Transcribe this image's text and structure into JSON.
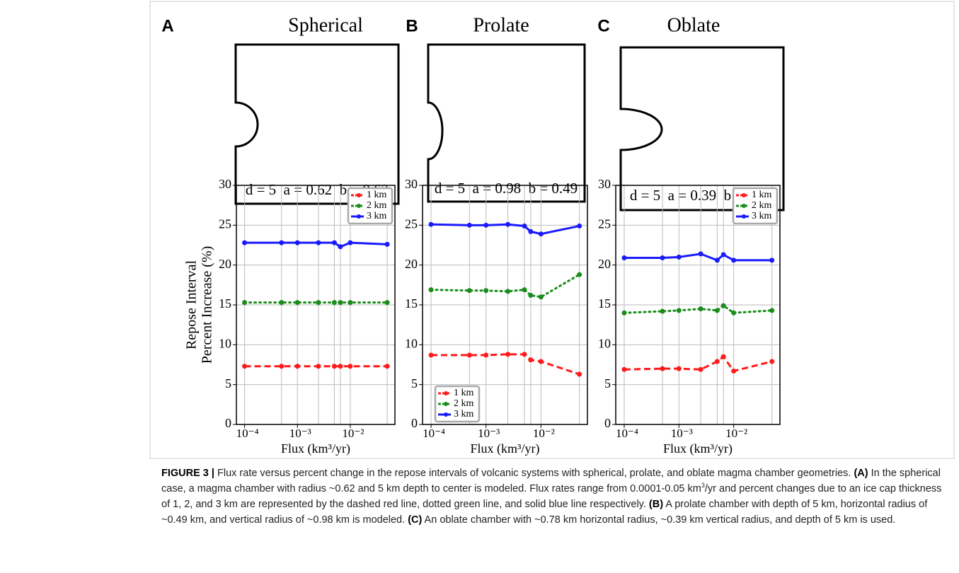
{
  "panels": [
    {
      "letter": "A",
      "title": "Spherical",
      "params": "d = 5  a = 0.62  b = 0.62"
    },
    {
      "letter": "B",
      "title": "Prolate",
      "params": "d = 5  a = 0.98  b = 0.49"
    },
    {
      "letter": "C",
      "title": "Oblate",
      "params": "d = 5  a = 0.39  b = 0.78"
    }
  ],
  "chart_data": [
    {
      "type": "line",
      "ylabel": [
        "Repose Interval",
        "Percent Increase (%)"
      ],
      "xlabel": "Flux (km³/yr)",
      "log_x": true,
      "xlim": [
        7e-05,
        0.07
      ],
      "xticks": [
        {
          "value": 0.0001,
          "label": "10⁻⁴"
        },
        {
          "value": 0.001,
          "label": "10⁻³"
        },
        {
          "value": 0.01,
          "label": "10⁻²"
        }
      ],
      "ylim": [
        0,
        30
      ],
      "yticks": [
        0,
        5,
        10,
        15,
        20,
        25,
        30
      ],
      "grid": true,
      "legend": "upper right",
      "x": [
        0.0001,
        0.0005,
        0.001,
        0.0025,
        0.005,
        0.0065,
        0.01,
        0.05
      ],
      "series": [
        {
          "name": "1 km",
          "color": "#ff1a1a",
          "dash": "dashed",
          "values": [
            7.3,
            7.3,
            7.3,
            7.3,
            7.3,
            7.3,
            7.3,
            7.3
          ]
        },
        {
          "name": "2 km",
          "color": "#1a8c1a",
          "dash": "dotted",
          "values": [
            15.3,
            15.3,
            15.3,
            15.3,
            15.3,
            15.3,
            15.3,
            15.3
          ]
        },
        {
          "name": "3 km",
          "color": "#1a1aff",
          "dash": "solid",
          "values": [
            22.8,
            22.8,
            22.8,
            22.8,
            22.8,
            22.3,
            22.8,
            22.6
          ]
        }
      ]
    },
    {
      "type": "line",
      "xlabel": "Flux (km³/yr)",
      "log_x": true,
      "xlim": [
        7e-05,
        0.07
      ],
      "xticks": [
        {
          "value": 0.0001,
          "label": "10⁻⁴"
        },
        {
          "value": 0.001,
          "label": "10⁻³"
        },
        {
          "value": 0.01,
          "label": "10⁻²"
        }
      ],
      "ylim": [
        0,
        30
      ],
      "yticks": [
        0,
        5,
        10,
        15,
        20,
        25,
        30
      ],
      "grid": true,
      "legend": "lower left",
      "x": [
        0.0001,
        0.0005,
        0.001,
        0.0025,
        0.005,
        0.0065,
        0.01,
        0.05
      ],
      "series": [
        {
          "name": "1 km",
          "color": "#ff1a1a",
          "dash": "dashed",
          "values": [
            8.7,
            8.7,
            8.7,
            8.8,
            8.8,
            8.1,
            7.9,
            6.3
          ]
        },
        {
          "name": "2 km",
          "color": "#1a8c1a",
          "dash": "dotted",
          "values": [
            16.9,
            16.8,
            16.8,
            16.7,
            16.9,
            16.2,
            16.0,
            18.8
          ]
        },
        {
          "name": "3 km",
          "color": "#1a1aff",
          "dash": "solid",
          "values": [
            25.1,
            25.0,
            25.0,
            25.1,
            24.9,
            24.2,
            23.9,
            24.9
          ]
        }
      ]
    },
    {
      "type": "line",
      "xlabel": "Flux (km³/yr)",
      "log_x": true,
      "xlim": [
        7e-05,
        0.07
      ],
      "xticks": [
        {
          "value": 0.0001,
          "label": "10⁻⁴"
        },
        {
          "value": 0.001,
          "label": "10⁻³"
        },
        {
          "value": 0.01,
          "label": "10⁻²"
        }
      ],
      "ylim": [
        0,
        30
      ],
      "yticks": [
        0,
        5,
        10,
        15,
        20,
        25,
        30
      ],
      "grid": true,
      "legend": "upper right",
      "x": [
        0.0001,
        0.0005,
        0.001,
        0.0025,
        0.005,
        0.0065,
        0.01,
        0.05
      ],
      "series": [
        {
          "name": "1 km",
          "color": "#ff1a1a",
          "dash": "dashed",
          "values": [
            6.9,
            7.0,
            7.0,
            6.9,
            7.9,
            8.5,
            6.7,
            7.9
          ]
        },
        {
          "name": "2 km",
          "color": "#1a8c1a",
          "dash": "dotted",
          "values": [
            14.0,
            14.2,
            14.3,
            14.5,
            14.3,
            14.9,
            14.0,
            14.3
          ]
        },
        {
          "name": "3 km",
          "color": "#1a1aff",
          "dash": "solid",
          "values": [
            20.9,
            20.9,
            21.0,
            21.4,
            20.6,
            21.3,
            20.6,
            20.6
          ]
        }
      ]
    }
  ],
  "caption": [
    {
      "text": "FIGURE 3 | ",
      "style": "bold"
    },
    {
      "text": "Flux rate versus percent change in the repose intervals of volcanic systems with spherical, prolate, and oblate magma chamber geometries. ",
      "style": "normal"
    },
    {
      "text": "(A)",
      "style": "bold"
    },
    {
      "text": " In the spherical case, a magma chamber with radius ~0.62 and 5 km depth to center is modeled. Flux rates range from 0.0001-0.05 km",
      "style": "normal"
    },
    {
      "text": "3",
      "style": "sup"
    },
    {
      "text": "/yr and percent changes due to an ice cap thickness of 1, 2, and 3 km are represented by the dashed red line, dotted green line, and solid blue line respectively. ",
      "style": "normal"
    },
    {
      "text": "(B)",
      "style": "bold"
    },
    {
      "text": " A prolate chamber with depth of 5 km, horizontal radius of ~0.49 km, and vertical radius of ~0.98 km is modeled. ",
      "style": "normal"
    },
    {
      "text": "(C)",
      "style": "bold"
    },
    {
      "text": " An oblate chamber with ~0.78 km horizontal radius, ~0.39 km vertical radius, and depth of 5 km is used.",
      "style": "normal"
    }
  ]
}
